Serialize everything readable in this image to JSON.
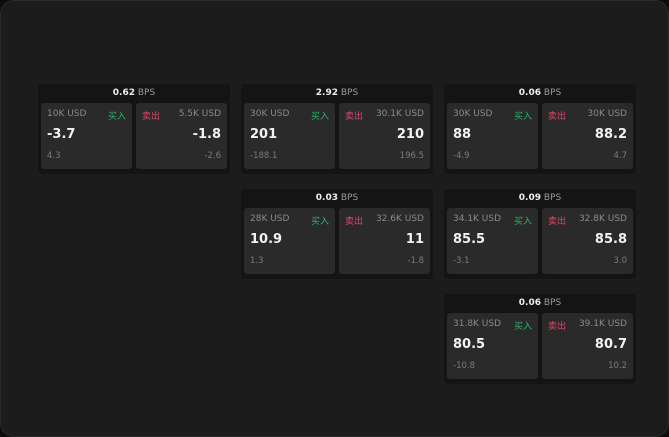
{
  "unit": "BPS",
  "buy_label": "买入",
  "sell_label": "卖出",
  "panels": [
    {
      "spread": "0.62",
      "bid": {
        "size": "10K USD",
        "price": "-3.7",
        "change": "4.3"
      },
      "ask": {
        "size": "5.5K USD",
        "price": "-1.8",
        "change": "-2.6"
      }
    },
    {
      "spread": "2.92",
      "bid": {
        "size": "30K USD",
        "price": "201",
        "change": "-188.1"
      },
      "ask": {
        "size": "30.1K USD",
        "price": "210",
        "change": "196.5"
      }
    },
    {
      "spread": "0.06",
      "bid": {
        "size": "30K USD",
        "price": "88",
        "change": "-4.9"
      },
      "ask": {
        "size": "30K USD",
        "price": "88.2",
        "change": "4.7"
      }
    },
    {
      "spread": "0.03",
      "bid": {
        "size": "28K USD",
        "price": "10.9",
        "change": "1.3"
      },
      "ask": {
        "size": "32.6K USD",
        "price": "11",
        "change": "-1.8"
      }
    },
    {
      "spread": "0.09",
      "bid": {
        "size": "34.1K USD",
        "price": "85.5",
        "change": "-3.1"
      },
      "ask": {
        "size": "32.8K USD",
        "price": "85.8",
        "change": "3.0"
      }
    },
    {
      "spread": "0.06",
      "bid": {
        "size": "31.8K USD",
        "price": "80.5",
        "change": "-10.8"
      },
      "ask": {
        "size": "39.1K USD",
        "price": "80.7",
        "change": "10.2"
      }
    }
  ]
}
